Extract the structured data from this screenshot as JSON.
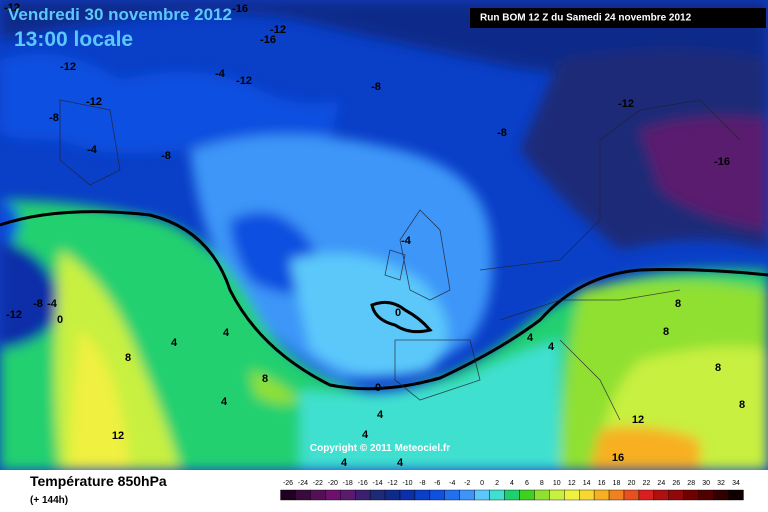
{
  "header": {
    "date": "Vendredi 30 novembre 2012",
    "time": "13:00 locale",
    "run": "Run BOM 12 Z du Samedi 24 novembre 2012"
  },
  "copyright": "Copyright © 2011 Meteociel.fr",
  "footer": {
    "title": "Température 850hPa",
    "lead": "(+ 144h)"
  },
  "legend": {
    "ticks": [
      -26,
      -24,
      -22,
      -20,
      -18,
      -16,
      -14,
      -12,
      -10,
      -8,
      -6,
      -4,
      -2,
      0,
      2,
      4,
      6,
      8,
      10,
      12,
      14,
      16,
      18,
      20,
      22,
      24,
      26,
      28,
      30,
      32,
      34
    ],
    "colors": [
      "#200020",
      "#3a0a3c",
      "#550f55",
      "#6e106e",
      "#5a1a6e",
      "#3b2070",
      "#1e2a78",
      "#102a8a",
      "#0a2fa8",
      "#0a3fc8",
      "#1050e0",
      "#2070f0",
      "#3c96f8",
      "#5cc8fa",
      "#40e0d0",
      "#20d070",
      "#40d020",
      "#90e030",
      "#c8f040",
      "#f0f040",
      "#f8d830",
      "#f8b020",
      "#f08020",
      "#e85020",
      "#d82020",
      "#b01010",
      "#900808",
      "#700000",
      "#500000",
      "#300000",
      "#100000"
    ]
  },
  "isotherm_labels": [
    "-12",
    "-16",
    "-12",
    "-16",
    "-12",
    "-4",
    "-12",
    "-8",
    "-12",
    "-12",
    "-8",
    "-8",
    "-4",
    "-8",
    "-16",
    "-4",
    "-8",
    "-4",
    "-12",
    "0",
    "0",
    "4",
    "4",
    "4",
    "4",
    "8",
    "8",
    "8",
    "8",
    "4",
    "0",
    "4",
    "12",
    "4",
    "12",
    "8",
    "8",
    "16",
    "4",
    "4"
  ]
}
